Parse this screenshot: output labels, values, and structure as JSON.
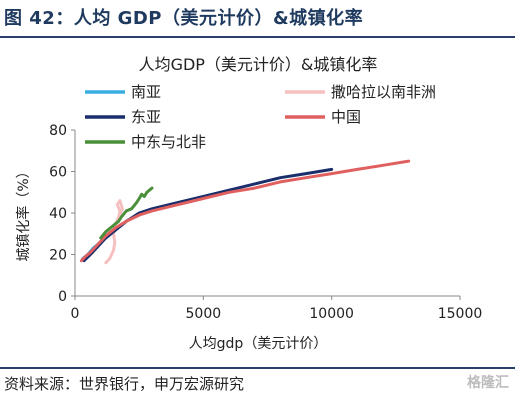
{
  "figure": {
    "title": "图 42：人均 GDP（美元计价）&城镇化率",
    "source": "资料来源：世界银行，申万宏源研究",
    "watermark": "格隆汇"
  },
  "chart_data": {
    "type": "line",
    "title": "人均GDP（美元计价）&城镇化率",
    "xlabel": "人均gdp（美元计价）",
    "ylabel": "城镇化率（%）",
    "xlim": [
      0,
      15000
    ],
    "ylim": [
      0,
      80
    ],
    "xticks": [
      0,
      5000,
      10000,
      15000
    ],
    "yticks": [
      0,
      20,
      40,
      60,
      80
    ],
    "grid": false,
    "legend_position": "top",
    "series": [
      {
        "name": "南亚",
        "color": "#3aaee0",
        "points": [
          [
            300,
            18
          ],
          [
            500,
            20
          ],
          [
            700,
            23
          ],
          [
            900,
            25
          ],
          [
            1100,
            27
          ],
          [
            1300,
            29
          ],
          [
            1500,
            31
          ],
          [
            1700,
            33
          ],
          [
            1900,
            35
          ]
        ]
      },
      {
        "name": "撒哈拉以南非洲",
        "color": "#f6c0c0",
        "points": [
          [
            1200,
            16
          ],
          [
            1350,
            18
          ],
          [
            1500,
            22
          ],
          [
            1550,
            26
          ],
          [
            1500,
            30
          ],
          [
            1550,
            34
          ],
          [
            1700,
            38
          ],
          [
            1750,
            41
          ],
          [
            1650,
            44
          ],
          [
            1750,
            46
          ],
          [
            1850,
            42
          ],
          [
            1700,
            38
          ]
        ]
      },
      {
        "name": "东亚",
        "color": "#1a2e6b",
        "points": [
          [
            350,
            17
          ],
          [
            600,
            20
          ],
          [
            900,
            24
          ],
          [
            1200,
            28
          ],
          [
            1600,
            32
          ],
          [
            2000,
            36
          ],
          [
            2500,
            40
          ],
          [
            3000,
            42
          ],
          [
            4000,
            45
          ],
          [
            5000,
            48
          ],
          [
            6000,
            51
          ],
          [
            7000,
            54
          ],
          [
            8000,
            57
          ],
          [
            9000,
            59
          ],
          [
            10000,
            61
          ]
        ]
      },
      {
        "name": "中国",
        "color": "#e06060",
        "points": [
          [
            250,
            17
          ],
          [
            400,
            19
          ],
          [
            600,
            21
          ],
          [
            900,
            25
          ],
          [
            1200,
            29
          ],
          [
            1600,
            33
          ],
          [
            2000,
            36
          ],
          [
            2500,
            39
          ],
          [
            3000,
            41
          ],
          [
            4000,
            44
          ],
          [
            5000,
            47
          ],
          [
            6000,
            50
          ],
          [
            7000,
            52
          ],
          [
            8000,
            55
          ],
          [
            9000,
            57
          ],
          [
            10000,
            59
          ],
          [
            11000,
            61
          ],
          [
            12000,
            63
          ],
          [
            13000,
            65
          ]
        ]
      },
      {
        "name": "中东与北非",
        "color": "#4a8f3a",
        "points": [
          [
            1000,
            28
          ],
          [
            1200,
            31
          ],
          [
            1500,
            34
          ],
          [
            1700,
            36
          ],
          [
            1800,
            38
          ],
          [
            2000,
            41
          ],
          [
            2200,
            42
          ],
          [
            2400,
            45
          ],
          [
            2500,
            47
          ],
          [
            2600,
            49
          ],
          [
            2700,
            48
          ],
          [
            2800,
            50
          ],
          [
            2900,
            51
          ],
          [
            3000,
            52
          ]
        ]
      }
    ],
    "legend_layout": [
      {
        "series": 0,
        "col": 0,
        "row": 0
      },
      {
        "series": 1,
        "col": 1,
        "row": 0
      },
      {
        "series": 2,
        "col": 0,
        "row": 1
      },
      {
        "series": 3,
        "col": 1,
        "row": 1
      },
      {
        "series": 4,
        "col": 0,
        "row": 2
      }
    ]
  }
}
